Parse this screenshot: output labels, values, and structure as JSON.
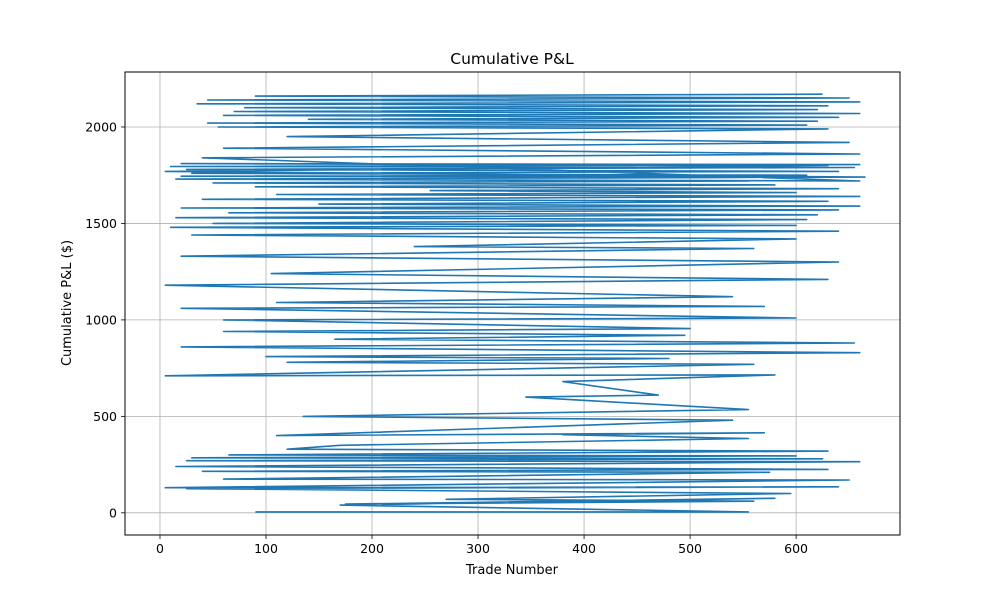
{
  "chart_data": {
    "type": "line",
    "title": "Cumulative P&L",
    "xlabel": "Trade Number",
    "ylabel": "Cumulative P&L ($)",
    "xlim": [
      -33,
      698
    ],
    "ylim": [
      -115,
      2285
    ],
    "xticks": [
      0,
      100,
      200,
      300,
      400,
      500,
      600
    ],
    "yticks": [
      0,
      500,
      1000,
      1500,
      2000
    ],
    "grid": true,
    "line_color": "#1f77b4",
    "series": [
      {
        "name": "",
        "x": [
          90,
          555,
          170,
          580,
          175,
          560,
          270,
          595,
          25,
          640,
          5,
          650,
          60,
          575,
          40,
          630,
          15,
          660,
          25,
          625,
          30,
          600,
          65,
          630,
          120,
          170,
          555,
          380,
          570,
          110,
          540,
          135,
          555,
          345,
          470,
          380,
          580,
          5,
          560,
          120,
          480,
          100,
          660,
          20,
          655,
          165,
          495,
          60,
          500,
          60,
          600,
          20,
          570,
          110,
          540,
          5,
          630,
          105,
          640,
          20,
          560,
          240,
          600,
          30,
          640,
          10,
          600,
          50,
          610,
          15,
          620,
          65,
          640,
          20,
          660,
          150,
          630,
          40,
          660,
          110,
          600,
          255,
          640,
          90,
          580,
          50,
          555,
          20,
          600,
          20,
          610,
          30,
          640,
          25,
          655,
          10,
          660,
          20,
          630,
          5,
          665,
          15,
          660,
          40,
          660,
          60,
          650,
          120,
          630,
          55,
          610,
          45,
          620,
          140,
          640,
          60,
          660,
          70,
          620,
          80,
          630,
          35,
          660,
          45,
          650,
          90,
          625
        ],
        "y": [
          5,
          5,
          40,
          75,
          45,
          60,
          70,
          100,
          125,
          135,
          130,
          170,
          175,
          210,
          215,
          225,
          240,
          265,
          270,
          280,
          285,
          295,
          300,
          320,
          330,
          350,
          385,
          405,
          415,
          400,
          480,
          500,
          535,
          600,
          610,
          680,
          715,
          710,
          770,
          780,
          800,
          810,
          830,
          860,
          880,
          900,
          920,
          940,
          955,
          1000,
          1010,
          1060,
          1070,
          1090,
          1120,
          1180,
          1210,
          1240,
          1300,
          1330,
          1370,
          1380,
          1420,
          1440,
          1460,
          1480,
          1490,
          1500,
          1520,
          1530,
          1545,
          1555,
          1570,
          1580,
          1590,
          1600,
          1615,
          1625,
          1640,
          1650,
          1660,
          1670,
          1680,
          1690,
          1700,
          1710,
          1720,
          1730,
          1740,
          1745,
          1750,
          1760,
          1770,
          1780,
          1790,
          1795,
          1805,
          1810,
          1800,
          1770,
          1740,
          1730,
          1720,
          1840,
          1860,
          1890,
          1920,
          1950,
          1990,
          2000,
          2010,
          2020,
          2030,
          2040,
          2050,
          2060,
          2070,
          2080,
          2090,
          2100,
          2110,
          2120,
          2130,
          2140,
          2150,
          2160,
          2170
        ]
      }
    ]
  }
}
